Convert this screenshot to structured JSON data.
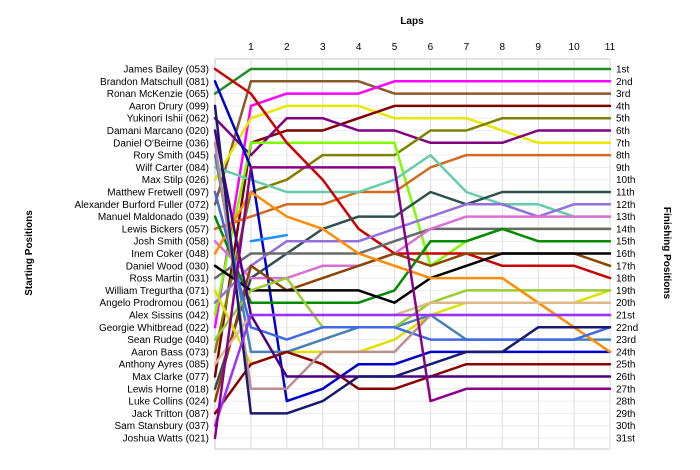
{
  "chart_data": {
    "type": "line",
    "title": "",
    "xlabel": "Laps",
    "ylabel_left": "Starting Positions",
    "ylabel_right": "Finishing Positions",
    "x": [
      0,
      1,
      2,
      3,
      4,
      5,
      6,
      7,
      8,
      9,
      10,
      11
    ],
    "x_tick_labels": [
      "1",
      "2",
      "3",
      "4",
      "5",
      "6",
      "7",
      "8",
      "9",
      "10",
      "11"
    ],
    "grid": true,
    "y_reversed": true,
    "starting_labels": [
      "James Bailey (053)",
      "Brandon Matschull (081)",
      "Ronan McKenzie (065)",
      "Aaron Drury (099)",
      "Yukinori Ishii (062)",
      "Damani Marcano (020)",
      "Daniel O'Beirne (036)",
      "Rory Smith (045)",
      "Wilf Carter (084)",
      "Max Stilp (026)",
      "Matthew Fretwell (097)",
      "Alexander Burford Fuller (072)",
      "Manuel Maldonado (039)",
      "Lewis Bickers (057)",
      "Josh Smith (058)",
      "Inem Coker (048)",
      "Daniel Wood (030)",
      "Ross Martin (031)",
      "William Tregurtha (071)",
      "Angelo Prodromou (061)",
      "Alex Sissins (042)",
      "Georgie Whitbread (022)",
      "Sean Rudge (040)",
      "Aaron Bass (073)",
      "Anthony Ayres (085)",
      "Max Clarke (077)",
      "Lewis Horne (018)",
      "Luke Collins (024)",
      "Jack Tritton (087)",
      "Sam Stansbury (037)",
      "Joshua Watts (021)"
    ],
    "finishing_labels": [
      "1st",
      "2nd",
      "3rd",
      "4th",
      "5th",
      "6th",
      "7th",
      "8th",
      "9th",
      "10th",
      "11th",
      "12th",
      "13th",
      "14th",
      "15th",
      "16th",
      "17th",
      "18th",
      "19th",
      "20th",
      "21st",
      "22nd",
      "23rd",
      "24th",
      "25th",
      "26th",
      "27th",
      "28th",
      "29th",
      "30th",
      "31st"
    ],
    "series": [
      {
        "color": "#228B22",
        "values": [
          3,
          1,
          1,
          1,
          1,
          1,
          1,
          1,
          1,
          1,
          1,
          1
        ]
      },
      {
        "color": "#8B5A2B",
        "values": [
          12,
          2,
          2,
          2,
          2,
          3,
          3,
          3,
          3,
          3,
          3,
          3
        ]
      },
      {
        "color": "#FF00FF",
        "values": [
          22,
          4,
          3,
          3,
          3,
          2,
          2,
          2,
          2,
          2,
          2,
          2
        ]
      },
      {
        "color": "#E8E800",
        "values": [
          10,
          5,
          4,
          4,
          4,
          5,
          5,
          5,
          6,
          7,
          7,
          7
        ]
      },
      {
        "color": "#800000",
        "values": [
          26,
          7,
          6,
          6,
          5,
          4,
          4,
          4,
          4,
          4,
          4,
          4
        ]
      },
      {
        "color": "#800080",
        "values": [
          5,
          8,
          5,
          5,
          6,
          6,
          7,
          7,
          7,
          6,
          6,
          6
        ]
      },
      {
        "color": "#808000",
        "values": [
          24,
          11,
          10,
          8,
          8,
          8,
          6,
          6,
          5,
          5,
          5,
          5
        ]
      },
      {
        "color": "#7CFC00",
        "values": [
          21,
          7,
          7,
          7,
          7,
          7,
          17,
          15,
          14,
          14,
          14,
          14
        ]
      },
      {
        "color": "#D2691E",
        "values": [
          14,
          13,
          12,
          12,
          11,
          11,
          9,
          8,
          8,
          8,
          8,
          8
        ]
      },
      {
        "color": "#66CDAA",
        "values": [
          9,
          10,
          11,
          11,
          11,
          10,
          8,
          11,
          12,
          12,
          13,
          13
        ]
      },
      {
        "color": "#CC0000",
        "values": [
          1,
          3,
          7,
          10,
          14,
          16,
          16,
          16,
          17,
          17,
          17,
          18
        ]
      },
      {
        "color": "#2F4F4F",
        "values": [
          27,
          18,
          16,
          14,
          13,
          13,
          11,
          12,
          11,
          11,
          11,
          11
        ]
      },
      {
        "color": "#0000CD",
        "values": [
          2,
          9,
          28,
          27,
          25,
          25,
          24,
          24,
          24,
          24,
          24,
          24
        ]
      },
      {
        "color": "#9370DB",
        "values": [
          20,
          17,
          15,
          15,
          15,
          14,
          13,
          12,
          12,
          13,
          12,
          12
        ]
      },
      {
        "color": "#696969",
        "values": [
          18,
          16,
          16,
          16,
          16,
          15,
          14,
          14,
          14,
          14,
          14,
          14
        ]
      },
      {
        "color": "#008B00",
        "values": [
          13,
          20,
          20,
          20,
          20,
          19,
          15,
          15,
          14,
          15,
          15,
          15
        ]
      },
      {
        "color": "#DA70D6",
        "values": [
          15,
          18,
          18,
          17,
          17,
          16,
          14,
          13,
          13,
          13,
          13,
          13
        ]
      },
      {
        "color": "#8B4500",
        "values": [
          28,
          17,
          19,
          18,
          17,
          16,
          17,
          16,
          16,
          16,
          16,
          17
        ]
      },
      {
        "color": "#E0E000",
        "values": [
          19,
          25,
          24,
          24,
          24,
          23,
          21,
          20,
          20,
          20,
          20,
          19
        ]
      },
      {
        "color": "#000000",
        "values": [
          17,
          19,
          19,
          19,
          19,
          20,
          18,
          17,
          16,
          16,
          16,
          16
        ]
      },
      {
        "color": "#4682B4",
        "values": [
          8,
          24,
          24,
          23,
          22,
          22,
          21,
          23,
          23,
          23,
          23,
          23
        ]
      },
      {
        "color": "#9ACD32",
        "values": [
          23,
          19,
          18,
          22,
          22,
          22,
          20,
          19,
          19,
          19,
          19,
          19
        ]
      },
      {
        "color": "#FF8C00",
        "values": [
          16,
          11,
          13,
          14,
          16,
          17,
          18,
          18,
          18,
          20,
          22,
          24
        ]
      },
      {
        "color": "#DEB887",
        "values": [
          25,
          21,
          21,
          21,
          21,
          21,
          20,
          20,
          20,
          20,
          20,
          20
        ]
      },
      {
        "color": "#8B0000",
        "values": [
          29,
          25,
          24,
          25,
          27,
          27,
          26,
          25,
          25,
          25,
          25,
          25
        ]
      },
      {
        "color": "#4169E1",
        "values": [
          11,
          22,
          23,
          22,
          22,
          22,
          23,
          23,
          23,
          23,
          23,
          22
        ]
      },
      {
        "color": "#BC8F8F",
        "values": [
          7,
          27,
          27,
          24,
          24,
          24,
          21,
          21,
          21,
          21,
          21,
          21
        ]
      },
      {
        "color": "#4B0082",
        "values": [
          6,
          21,
          26,
          26,
          26,
          26,
          26,
          26,
          26,
          26,
          26,
          26
        ]
      },
      {
        "color": "#191970",
        "values": [
          4,
          29,
          29,
          28,
          26,
          26,
          25,
          24,
          24,
          22,
          22,
          22
        ]
      },
      {
        "color": "#9B30FF",
        "values": [
          30,
          21,
          21,
          21,
          21,
          21,
          21,
          21,
          21,
          21,
          21,
          21
        ]
      },
      {
        "color": "#8B008B",
        "values": [
          31,
          9,
          9,
          9,
          9,
          9,
          28,
          27,
          27,
          27,
          27,
          27
        ]
      }
    ],
    "extra_segment": {
      "color": "#1E90FF",
      "x": [
        1,
        2
      ],
      "y": [
        15,
        14.5
      ]
    }
  }
}
